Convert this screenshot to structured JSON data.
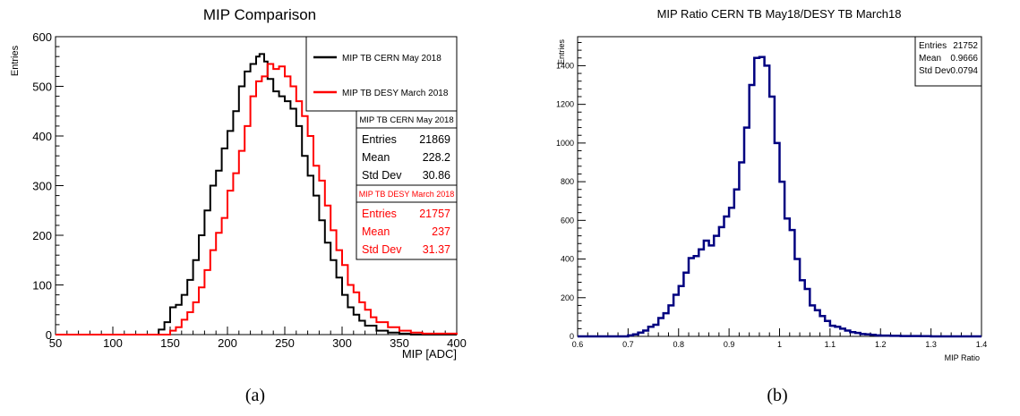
{
  "chart_data": [
    {
      "type": "area",
      "title": "MIP Comparison",
      "xlabel": "MIP [ADC]",
      "ylabel": "Entries",
      "xlim": [
        50,
        400
      ],
      "ylim": [
        0,
        600
      ],
      "x_ticks": [
        "50",
        "100",
        "150",
        "200",
        "250",
        "300",
        "350",
        "400"
      ],
      "y_ticks": [
        "0",
        "100",
        "200",
        "300",
        "400",
        "500",
        "600"
      ],
      "series": [
        {
          "name": "MIP TB CERN May 2018",
          "color": "#000000",
          "x": [
            50,
            130,
            140,
            145,
            150,
            155,
            160,
            165,
            170,
            175,
            180,
            185,
            190,
            195,
            200,
            205,
            210,
            215,
            220,
            225,
            228,
            230,
            232,
            235,
            240,
            245,
            250,
            255,
            260,
            265,
            270,
            275,
            280,
            285,
            290,
            295,
            300,
            305,
            310,
            315,
            320,
            330,
            340,
            350,
            360,
            400
          ],
          "y": [
            0,
            0,
            10,
            25,
            55,
            60,
            80,
            110,
            150,
            200,
            250,
            300,
            330,
            375,
            410,
            450,
            500,
            530,
            545,
            560,
            565,
            565,
            550,
            515,
            490,
            480,
            470,
            455,
            420,
            360,
            320,
            280,
            230,
            185,
            150,
            115,
            80,
            55,
            40,
            28,
            18,
            8,
            4,
            2,
            0,
            0
          ]
        },
        {
          "name": "MIP TB DESY March 2018",
          "color": "#ff0000",
          "x": [
            50,
            140,
            150,
            155,
            160,
            165,
            170,
            175,
            180,
            185,
            190,
            195,
            200,
            205,
            210,
            215,
            220,
            225,
            230,
            235,
            240,
            245,
            250,
            255,
            260,
            265,
            270,
            275,
            280,
            285,
            290,
            295,
            300,
            305,
            310,
            315,
            320,
            325,
            330,
            340,
            350,
            360,
            370,
            400
          ],
          "y": [
            0,
            0,
            8,
            15,
            30,
            45,
            65,
            95,
            130,
            170,
            205,
            235,
            290,
            325,
            370,
            420,
            480,
            510,
            520,
            545,
            535,
            540,
            520,
            500,
            470,
            440,
            400,
            340,
            310,
            260,
            210,
            170,
            140,
            100,
            85,
            65,
            50,
            35,
            25,
            15,
            8,
            4,
            2,
            0
          ]
        }
      ],
      "legend": {
        "placement": "top-right",
        "entries": [
          "MIP TB CERN May 2018",
          "MIP TB DESY March 2018"
        ]
      },
      "stats": [
        {
          "title": "MIP TB CERN May 2018",
          "color": "#000000",
          "rows": [
            [
              "Entries",
              "21869"
            ],
            [
              "Mean",
              "228.2"
            ],
            [
              "Std Dev",
              "30.86"
            ]
          ]
        },
        {
          "title": "MIP TB DESY March 2018",
          "color": "#ff0000",
          "rows": [
            [
              "Entries",
              "21757"
            ],
            [
              "Mean",
              "237"
            ],
            [
              "Std Dev",
              "31.37"
            ]
          ]
        }
      ]
    },
    {
      "type": "area",
      "title": "MIP Ratio CERN TB May18/DESY TB March18",
      "xlabel": "MIP Ratio",
      "ylabel": "Entries",
      "xlim": [
        0.6,
        1.4
      ],
      "ylim": [
        0,
        1550
      ],
      "x_ticks": [
        "0.6",
        "0.7",
        "0.8",
        "0.9",
        "1",
        "1.1",
        "1.2",
        "1.3",
        "1.4"
      ],
      "y_ticks": [
        "0",
        "200",
        "400",
        "600",
        "800",
        "1000",
        "1200",
        "1400"
      ],
      "series": [
        {
          "color": "#000080",
          "x": [
            0.6,
            0.7,
            0.71,
            0.72,
            0.73,
            0.74,
            0.75,
            0.76,
            0.77,
            0.78,
            0.79,
            0.8,
            0.81,
            0.82,
            0.83,
            0.84,
            0.85,
            0.86,
            0.87,
            0.88,
            0.89,
            0.9,
            0.91,
            0.92,
            0.93,
            0.94,
            0.95,
            0.96,
            0.97,
            0.98,
            0.99,
            1.0,
            1.01,
            1.02,
            1.03,
            1.04,
            1.05,
            1.06,
            1.07,
            1.08,
            1.09,
            1.1,
            1.11,
            1.12,
            1.13,
            1.14,
            1.15,
            1.16,
            1.17,
            1.18,
            1.19,
            1.2,
            1.22,
            1.24,
            1.26,
            1.28,
            1.3,
            1.35
          ],
          "y": [
            0,
            5,
            10,
            20,
            30,
            50,
            60,
            95,
            120,
            160,
            215,
            260,
            330,
            405,
            415,
            450,
            495,
            470,
            520,
            565,
            620,
            665,
            760,
            900,
            1080,
            1300,
            1440,
            1445,
            1400,
            1240,
            1000,
            800,
            610,
            550,
            400,
            290,
            245,
            160,
            135,
            105,
            80,
            55,
            50,
            40,
            30,
            22,
            18,
            12,
            10,
            8,
            5,
            4,
            3,
            2,
            2,
            1,
            0,
            0
          ]
        }
      ],
      "stats": [
        {
          "rows": [
            [
              "Entries",
              "21752"
            ],
            [
              "Mean",
              "0.9666"
            ],
            [
              "Std Dev",
              "0.0794"
            ]
          ]
        }
      ]
    }
  ],
  "captions": [
    "(a)",
    "(b)"
  ]
}
